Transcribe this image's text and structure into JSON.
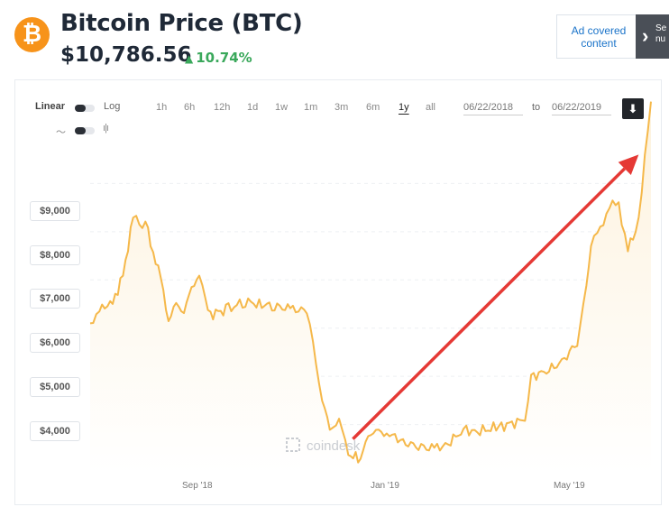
{
  "header": {
    "coin_symbol_glyph": "₿",
    "title": "Bitcoin Price (BTC)",
    "price": "$10,786.56",
    "change": "10.74%",
    "change_direction": "up",
    "accent_color": "#f7931a",
    "up_color": "#3aa85b"
  },
  "ad": {
    "label": "Ad covered content",
    "cut_text": "Se\nnu"
  },
  "toolbar": {
    "scale_left": "Linear",
    "scale_right": "Log",
    "ranges": [
      "1h",
      "6h",
      "12h",
      "1d",
      "1w",
      "1m",
      "3m",
      "6m",
      "1y",
      "all"
    ],
    "active_range": "1y",
    "date_from": "06/22/2018",
    "date_to": "06/22/2019",
    "date_separator": "to",
    "download_icon": "download-icon",
    "line_icon": "line-chart-icon",
    "candle_icon": "candlestick-icon"
  },
  "chart_data": {
    "type": "area",
    "x_start": "2018-06-22",
    "x_end": "2019-06-22",
    "ylim": [
      3000,
      10000
    ],
    "y_ticks": [
      "$9,000",
      "$8,000",
      "$7,000",
      "$6,000",
      "$5,000",
      "$4,000"
    ],
    "x_ticks": [
      "Sep '18",
      "Jan '19",
      "May '19"
    ],
    "watermark": "coindesk",
    "line_color": "#f5b84a",
    "fill_color": "#fdf2dd",
    "annotation_color": "#e53935",
    "series": [
      {
        "x": [
          "2018-06-22",
          "2018-06-28",
          "2018-07-05",
          "2018-07-10",
          "2018-07-15",
          "2018-07-20",
          "2018-07-24",
          "2018-07-28",
          "2018-08-02",
          "2018-08-07",
          "2018-08-12",
          "2018-08-17",
          "2018-08-22",
          "2018-08-27",
          "2018-09-01",
          "2018-09-05",
          "2018-09-10",
          "2018-09-20",
          "2018-10-01",
          "2018-10-10",
          "2018-10-20",
          "2018-11-01",
          "2018-11-10",
          "2018-11-14",
          "2018-11-20",
          "2018-11-25",
          "2018-12-01",
          "2018-12-07",
          "2018-12-15",
          "2018-12-20",
          "2018-12-25",
          "2019-01-01",
          "2019-01-10",
          "2019-01-20",
          "2019-02-01",
          "2019-02-10",
          "2019-02-20",
          "2019-03-01",
          "2019-03-15",
          "2019-04-01",
          "2019-04-05",
          "2019-04-15",
          "2019-04-25",
          "2019-05-05",
          "2019-05-11",
          "2019-05-14",
          "2019-05-20",
          "2019-05-26",
          "2019-06-01",
          "2019-06-07",
          "2019-06-12",
          "2019-06-16",
          "2019-06-22"
        ],
        "y": [
          6100,
          6350,
          6550,
          6700,
          7400,
          8300,
          8150,
          8200,
          7600,
          7000,
          6200,
          6450,
          6400,
          6750,
          7200,
          6500,
          6300,
          6400,
          6550,
          6500,
          6450,
          6400,
          6350,
          5700,
          4500,
          3900,
          4100,
          3400,
          3250,
          3800,
          3850,
          3850,
          3650,
          3550,
          3500,
          3600,
          3900,
          3850,
          3950,
          4100,
          5000,
          5100,
          5300,
          5700,
          6800,
          7800,
          8000,
          8600,
          8500,
          7700,
          7900,
          8900,
          10700
        ]
      }
    ]
  }
}
